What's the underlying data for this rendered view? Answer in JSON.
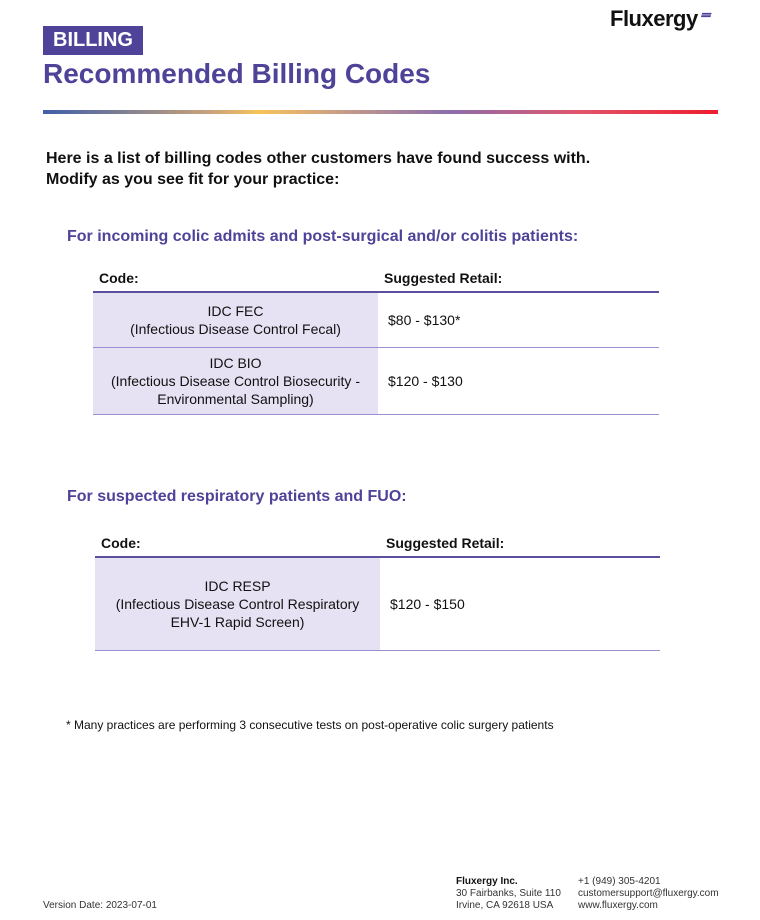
{
  "logo": {
    "text": "Fluxergy"
  },
  "badge": "BILLING",
  "title": "Recommended Billing Codes",
  "intro": [
    "Here is a list of billing codes other customers have found success with.",
    "Modify as you see fit for your practice:"
  ],
  "sections": [
    {
      "heading": "For incoming colic admits and post-surgical and/or colitis patients:",
      "headers": [
        "Code:",
        "Suggested Retail:"
      ],
      "rows": [
        {
          "code": "IDC FEC",
          "desc": "(Infectious Disease Control Fecal)",
          "price": "$80 - $130*"
        },
        {
          "code": "IDC BIO",
          "desc": "(Infectious Disease Control Biosecurity - Environmental Sampling)",
          "price": "$120 - $130"
        }
      ]
    },
    {
      "heading": "For suspected respiratory patients and FUO:",
      "headers": [
        "Code:",
        "Suggested Retail:"
      ],
      "rows": [
        {
          "code": "IDC RESP",
          "desc": "(Infectious Disease Control Respiratory EHV-1 Rapid Screen)",
          "price": "$120 - $150"
        }
      ]
    }
  ],
  "footnote": "* Many practices are performing 3 consecutive tests on post-operative colic surgery patients",
  "footer": {
    "version": "Version Date: 2023-07-01",
    "company": "Fluxergy Inc.",
    "street": "30 Fairbanks, Suite 110",
    "city": "Irvine, CA 92618 USA",
    "phone": "+1 (949) 305-4201",
    "email": "customersupport@fluxergy.com",
    "web": "www.fluxergy.com"
  }
}
